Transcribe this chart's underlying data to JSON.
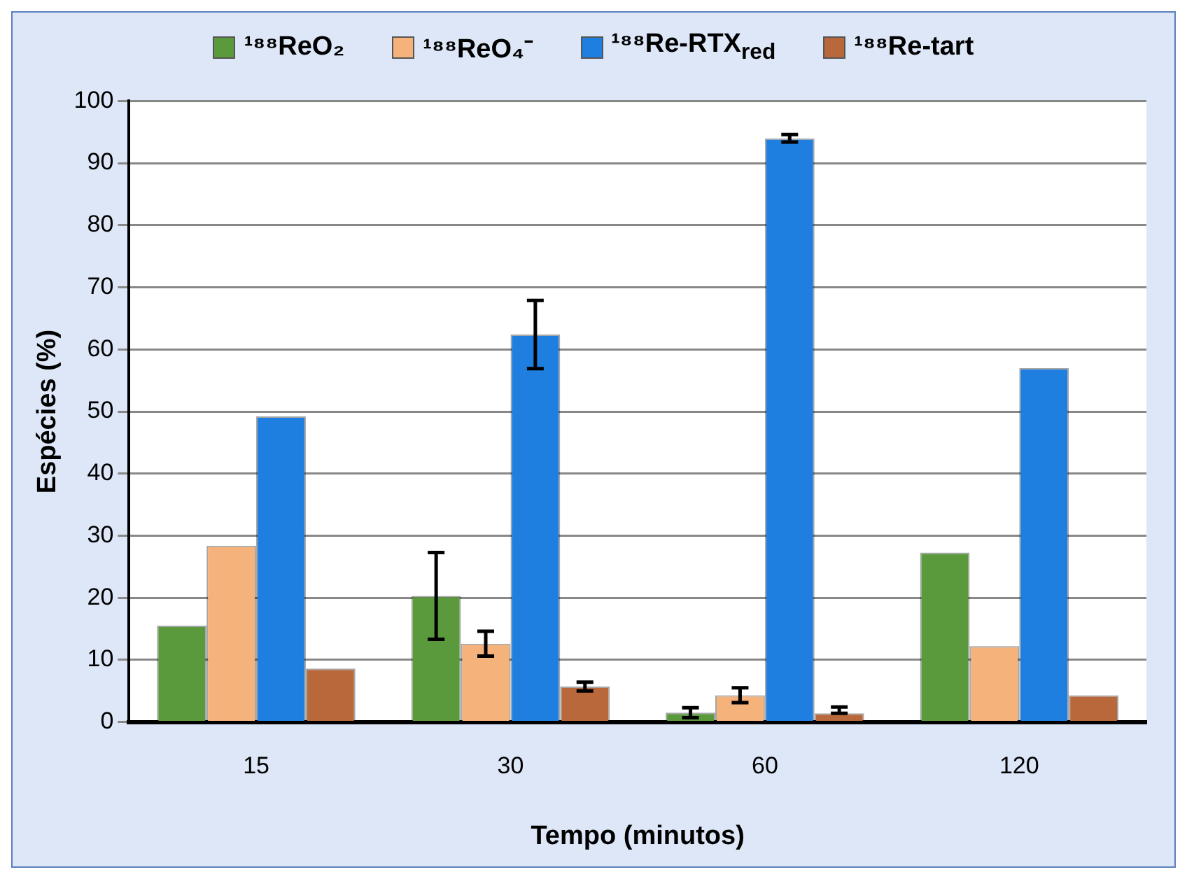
{
  "chart_data": {
    "type": "bar",
    "xlabel": "Tempo (minutos)",
    "ylabel": "Espécies (%)",
    "categories": [
      "15",
      "30",
      "60",
      "120"
    ],
    "ylim": [
      0,
      100
    ],
    "yticks": [
      0,
      10,
      20,
      30,
      40,
      50,
      60,
      70,
      80,
      90,
      100
    ],
    "grid": "y",
    "legend": "top",
    "series": [
      {
        "name": "¹⁸⁸ReO₂",
        "color": "#5a9a3c",
        "values": [
          15.5,
          20.3,
          1.5,
          27.3
        ],
        "errors": [
          null,
          7,
          0.8,
          null
        ]
      },
      {
        "name": "¹⁸⁸ReO₄⁻",
        "color": "#f5b27a",
        "values": [
          28.4,
          12.6,
          4.3,
          12.2
        ],
        "errors": [
          null,
          2,
          1.2,
          null
        ]
      },
      {
        "name": "¹⁸⁸Re-RTX$_{red}$",
        "color": "#1e7fe0",
        "values": [
          49.2,
          62.4,
          94,
          57
        ],
        "errors": [
          null,
          5.5,
          0.6,
          null
        ]
      },
      {
        "name": "¹⁸⁸Re-tart",
        "color": "#b8683a",
        "values": [
          8.6,
          5.7,
          1.4,
          4.3
        ],
        "errors": [
          null,
          0.7,
          [
            1.4,
            2.4
          ],
          null
        ]
      }
    ]
  }
}
